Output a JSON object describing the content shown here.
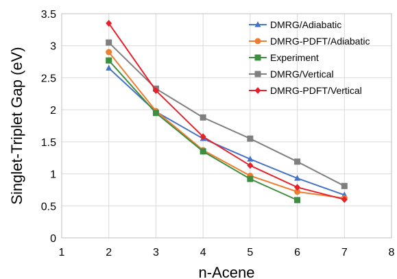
{
  "chart_data": {
    "type": "line",
    "title": "",
    "xlabel": "n-Acene",
    "ylabel": "Singlet-Triplet Gap (eV)",
    "xlim": [
      1,
      8
    ],
    "ylim": [
      0,
      3.5
    ],
    "xticks": [
      "1",
      "2",
      "3",
      "4",
      "5",
      "6",
      "7",
      "8"
    ],
    "yticks": [
      "0",
      "0.5",
      "1",
      "1.5",
      "2",
      "2.5",
      "3",
      "3.5"
    ],
    "grid": true,
    "legend_position": "top-right",
    "series": [
      {
        "name": "DMRG/Adiabatic",
        "color": "#4472C4",
        "marker": "triangle",
        "x": [
          2,
          3,
          4,
          5,
          6,
          7
        ],
        "y": [
          2.65,
          1.97,
          1.55,
          1.23,
          0.93,
          0.67
        ]
      },
      {
        "name": "DMRG-PDFT/Adiabatic",
        "color": "#ED7D31",
        "marker": "circle",
        "x": [
          2,
          3,
          4,
          5,
          6,
          7
        ],
        "y": [
          2.9,
          1.98,
          1.37,
          0.97,
          0.72,
          0.62
        ]
      },
      {
        "name": "Experiment",
        "color": "#3E8E41",
        "marker": "square",
        "x": [
          2,
          3,
          4,
          5,
          6
        ],
        "y": [
          2.77,
          1.95,
          1.35,
          0.92,
          0.59
        ]
      },
      {
        "name": "DMRG/Vertical",
        "color": "#7F7F7F",
        "marker": "square",
        "x": [
          2,
          3,
          4,
          5,
          6,
          7
        ],
        "y": [
          3.05,
          2.33,
          1.88,
          1.55,
          1.19,
          0.81
        ]
      },
      {
        "name": "DMRG-PDFT/Vertical",
        "color": "#E8202A",
        "marker": "diamond",
        "x": [
          2,
          3,
          4,
          5,
          6,
          7
        ],
        "y": [
          3.35,
          2.3,
          1.58,
          1.13,
          0.79,
          0.6
        ]
      }
    ]
  }
}
